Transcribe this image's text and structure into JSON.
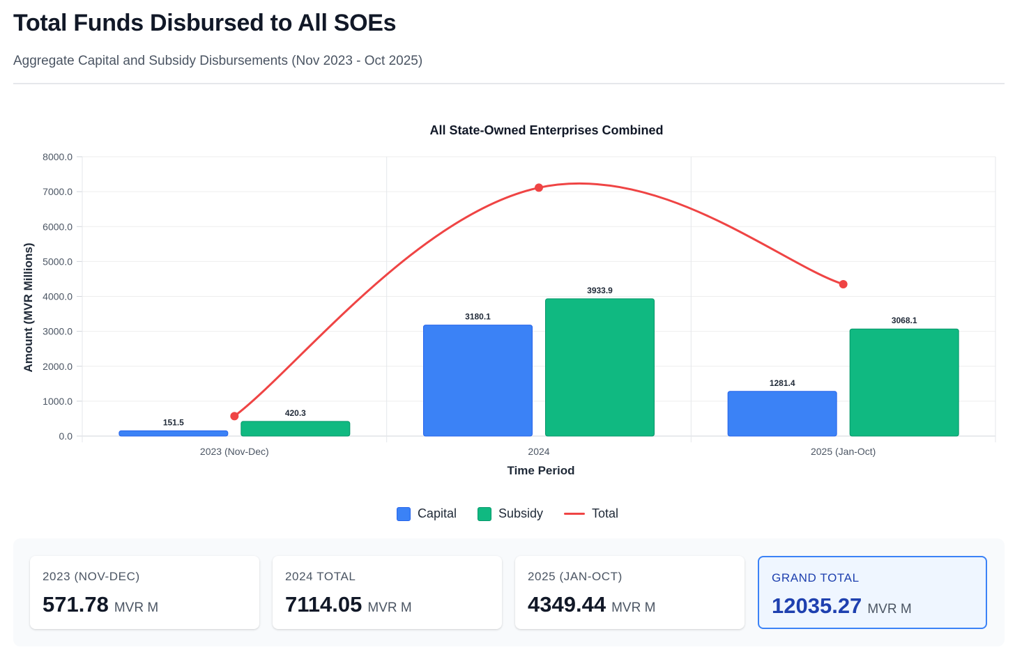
{
  "header": {
    "title": "Total Funds Disbursed to All SOEs",
    "subtitle": "Aggregate Capital and Subsidy Disbursements (Nov 2023 - Oct 2025)"
  },
  "chart_data": {
    "type": "bar",
    "title": "All State-Owned Enterprises Combined",
    "xlabel": "Time Period",
    "ylabel": "Amount (MVR Millions)",
    "categories": [
      "2023 (Nov-Dec)",
      "2024",
      "2025 (Jan-Oct)"
    ],
    "ylim": [
      0,
      8000
    ],
    "yticks": [
      "0.0",
      "1000.0",
      "2000.0",
      "3000.0",
      "4000.0",
      "5000.0",
      "6000.0",
      "7000.0",
      "8000.0"
    ],
    "grid": true,
    "legend_position": "bottom",
    "series": [
      {
        "name": "Capital",
        "type": "bar",
        "color": "#3b82f6",
        "values": [
          151.5,
          3180.1,
          1281.4
        ],
        "labels": [
          "151.5",
          "3180.1",
          "1281.4"
        ]
      },
      {
        "name": "Subsidy",
        "type": "bar",
        "color": "#10b981",
        "values": [
          420.3,
          3933.9,
          3068.1
        ],
        "labels": [
          "420.3",
          "3933.9",
          "3068.1"
        ]
      },
      {
        "name": "Total",
        "type": "line",
        "color": "#ef4444",
        "values": [
          571.78,
          7114.05,
          4349.44
        ]
      }
    ]
  },
  "stats": [
    {
      "label": "2023 (NOV-DEC)",
      "value": "571.78",
      "unit": "MVR M"
    },
    {
      "label": "2024 TOTAL",
      "value": "7114.05",
      "unit": "MVR M"
    },
    {
      "label": "2025 (JAN-OCT)",
      "value": "4349.44",
      "unit": "MVR M"
    },
    {
      "label": "GRAND TOTAL",
      "value": "12035.27",
      "unit": "MVR M"
    }
  ]
}
